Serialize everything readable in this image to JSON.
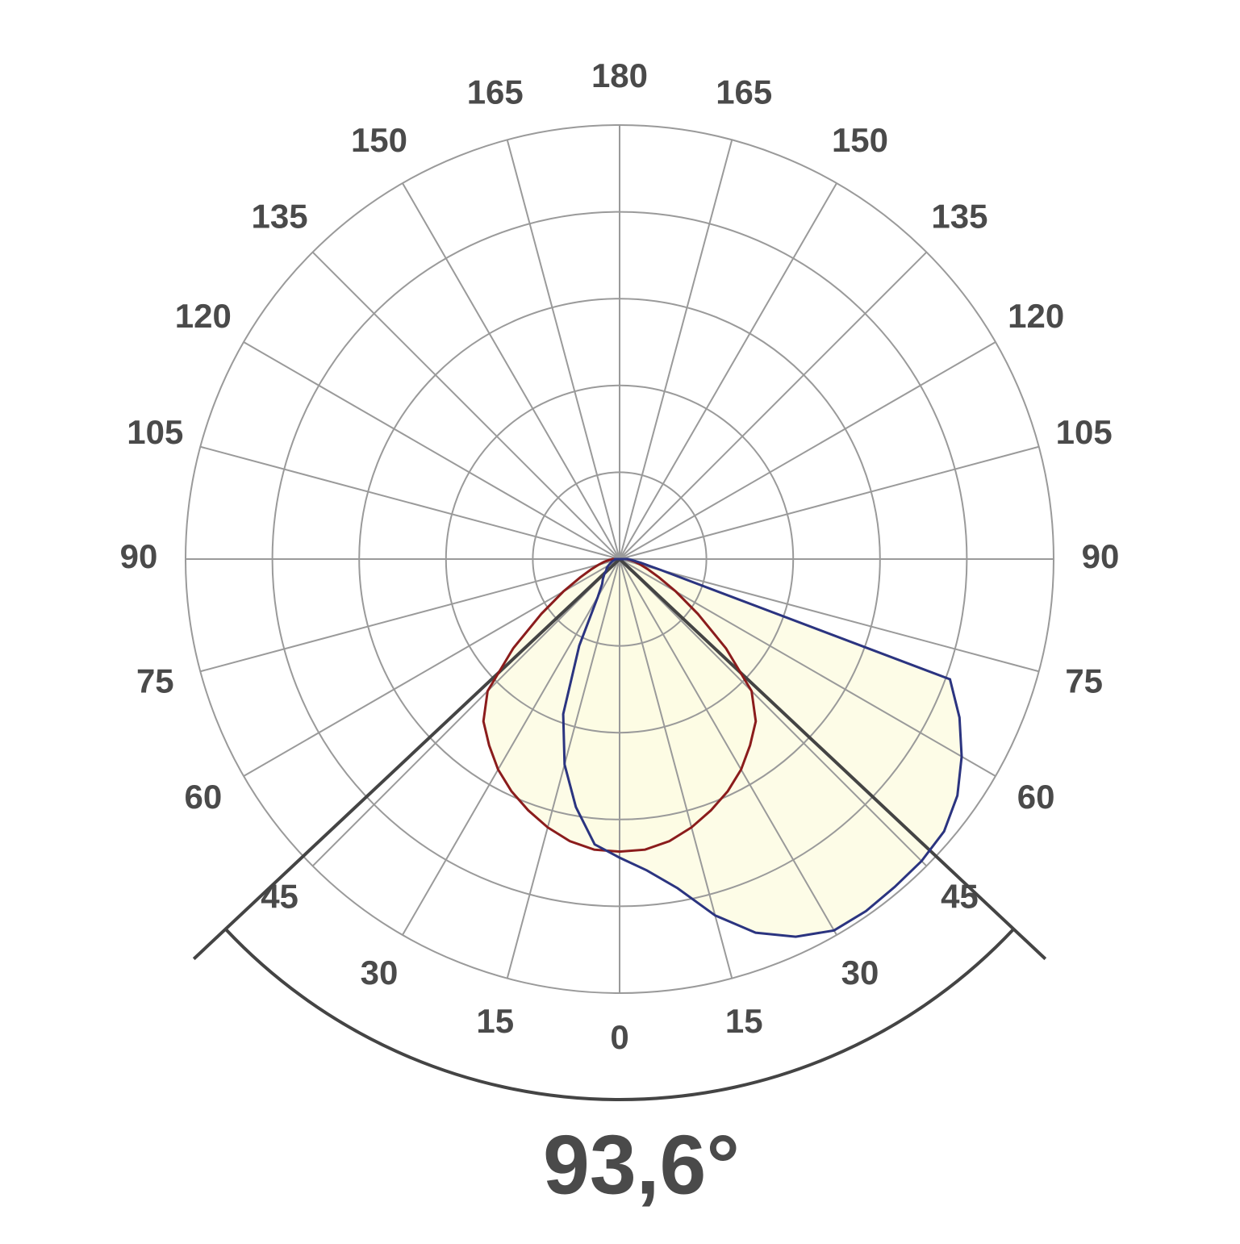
{
  "chart_data": {
    "type": "polar",
    "angle_ticks": [
      0,
      15,
      30,
      45,
      60,
      75,
      90,
      105,
      120,
      135,
      150,
      165,
      180
    ],
    "ring_count": 5,
    "grid_color": "#9a9a9a",
    "fill_color": "#fdfbe3",
    "x": [
      -90,
      -85,
      -80,
      -75,
      -70,
      -65,
      -60,
      -55,
      -50,
      -45,
      -40,
      -35,
      -30,
      -25,
      -20,
      -15,
      -10,
      -5,
      0,
      5,
      10,
      15,
      20,
      25,
      30,
      35,
      40,
      45,
      50,
      55,
      60,
      65,
      70,
      75,
      80,
      85,
      90
    ],
    "series": [
      {
        "color": "#8b1c1c",
        "values": [
          0.08,
          0.12,
          0.18,
          0.25,
          0.35,
          0.5,
          0.75,
          1.1,
          1.6,
          2.15,
          2.44,
          2.62,
          2.8,
          2.95,
          3.08,
          3.2,
          3.3,
          3.36,
          3.37,
          3.36,
          3.3,
          3.2,
          3.08,
          2.95,
          2.8,
          2.62,
          2.44,
          2.15,
          1.6,
          1.1,
          0.75,
          0.5,
          0.35,
          0.25,
          0.18,
          0.12,
          0.08
        ]
      },
      {
        "color": "#2b3480",
        "values": [
          0.05,
          0.05,
          0.06,
          0.08,
          0.1,
          0.12,
          0.15,
          0.18,
          0.2,
          0.25,
          0.3,
          0.35,
          0.5,
          1.1,
          1.9,
          2.45,
          2.9,
          3.3,
          3.44,
          3.6,
          3.85,
          4.25,
          4.58,
          4.8,
          4.94,
          4.95,
          4.93,
          4.92,
          4.88,
          4.75,
          4.55,
          4.32,
          4.05,
          0.5,
          0.25,
          0.15,
          0.1
        ]
      }
    ],
    "beam_angle": {
      "value": 93.6,
      "label": "93,6°"
    },
    "beam_color": "#444444"
  }
}
